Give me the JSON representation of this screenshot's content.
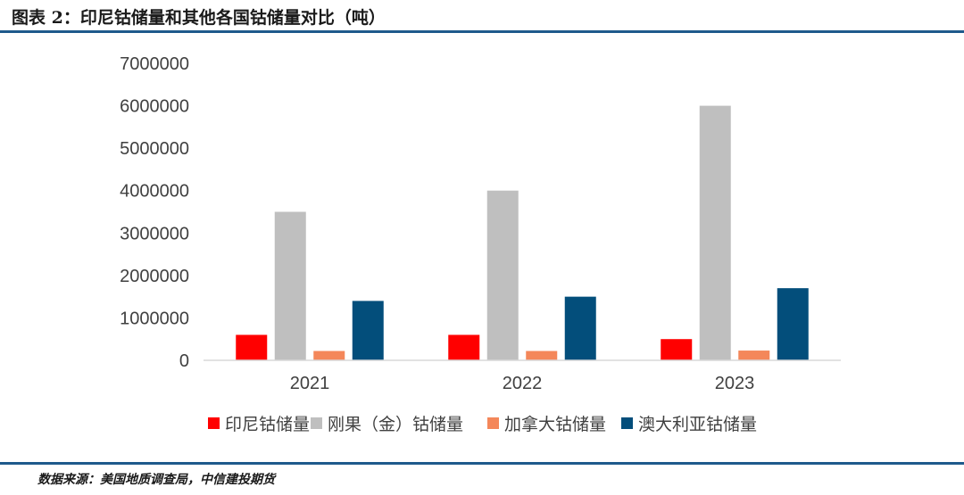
{
  "header": {
    "title": "图表 2：印尼钴储量和其他各国钴储量对比（吨）"
  },
  "footer": {
    "source": "数据来源：美国地质调查局，中信建投期货"
  },
  "chart_data": {
    "type": "bar",
    "categories": [
      "2021",
      "2022",
      "2023"
    ],
    "series": [
      {
        "name": "印尼钴储量",
        "values": [
          600000,
          600000,
          500000
        ],
        "color": "#ff0000"
      },
      {
        "name": "刚果（金）钴储量",
        "values": [
          3500000,
          4000000,
          6000000
        ],
        "color": "#bfbfbf"
      },
      {
        "name": "加拿大钴储量",
        "values": [
          220000,
          220000,
          230000
        ],
        "color": "#f4875a"
      },
      {
        "name": "澳大利亚钴储量",
        "values": [
          1400000,
          1500000,
          1700000
        ],
        "color": "#034e7b"
      }
    ],
    "y_ticks": [
      "0",
      "1000000",
      "2000000",
      "3000000",
      "4000000",
      "5000000",
      "6000000",
      "7000000"
    ],
    "ylim": [
      0,
      7000000
    ],
    "grid": false,
    "legend_position": "bottom"
  }
}
